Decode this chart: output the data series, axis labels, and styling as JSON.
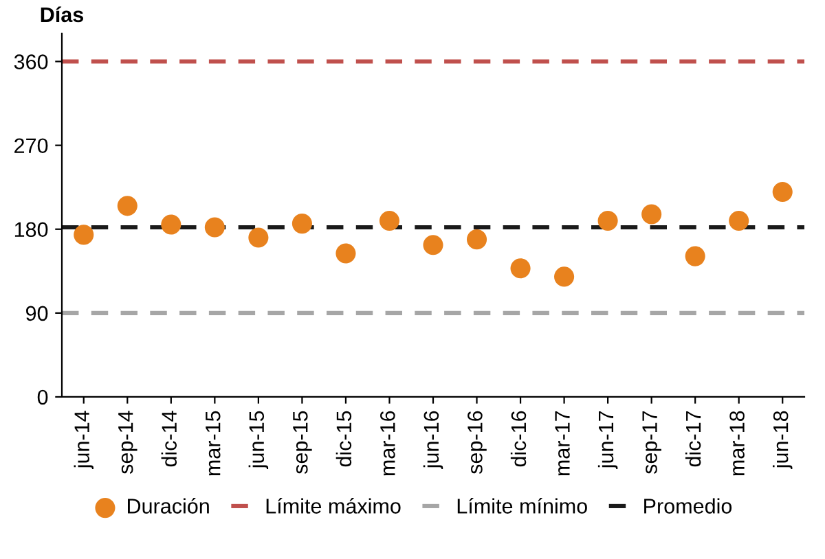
{
  "chart_data": {
    "type": "scatter",
    "ylabel": "Días",
    "categories": [
      "jun-14",
      "sep-14",
      "dic-14",
      "mar-15",
      "jun-15",
      "sep-15",
      "dic-15",
      "mar-16",
      "jun-16",
      "sep-16",
      "dic-16",
      "mar-17",
      "jun-17",
      "sep-17",
      "dic-17",
      "mar-18",
      "jun-18"
    ],
    "series": [
      {
        "name": "Duración",
        "color": "#e8821e",
        "values": [
          174,
          205,
          185,
          182,
          171,
          186,
          154,
          189,
          163,
          169,
          138,
          129,
          189,
          196,
          151,
          189,
          220
        ]
      }
    ],
    "ref_lines": [
      {
        "axis": "y",
        "value": 360,
        "label": "Límite máximo",
        "color": "#c0504d",
        "line_style": "dashed"
      },
      {
        "axis": "y",
        "value": 90,
        "label": "Límite mínimo",
        "color": "#a6a6a6",
        "line_style": "dashed"
      },
      {
        "axis": "y",
        "value": 182,
        "label": "Promedio",
        "color": "#1a1a1a",
        "line_style": "dashed"
      }
    ],
    "ylim": [
      0,
      390
    ],
    "yticks": [
      0,
      90,
      180,
      270,
      360
    ],
    "marker": "circle",
    "grid": false,
    "legend": "bottom"
  }
}
